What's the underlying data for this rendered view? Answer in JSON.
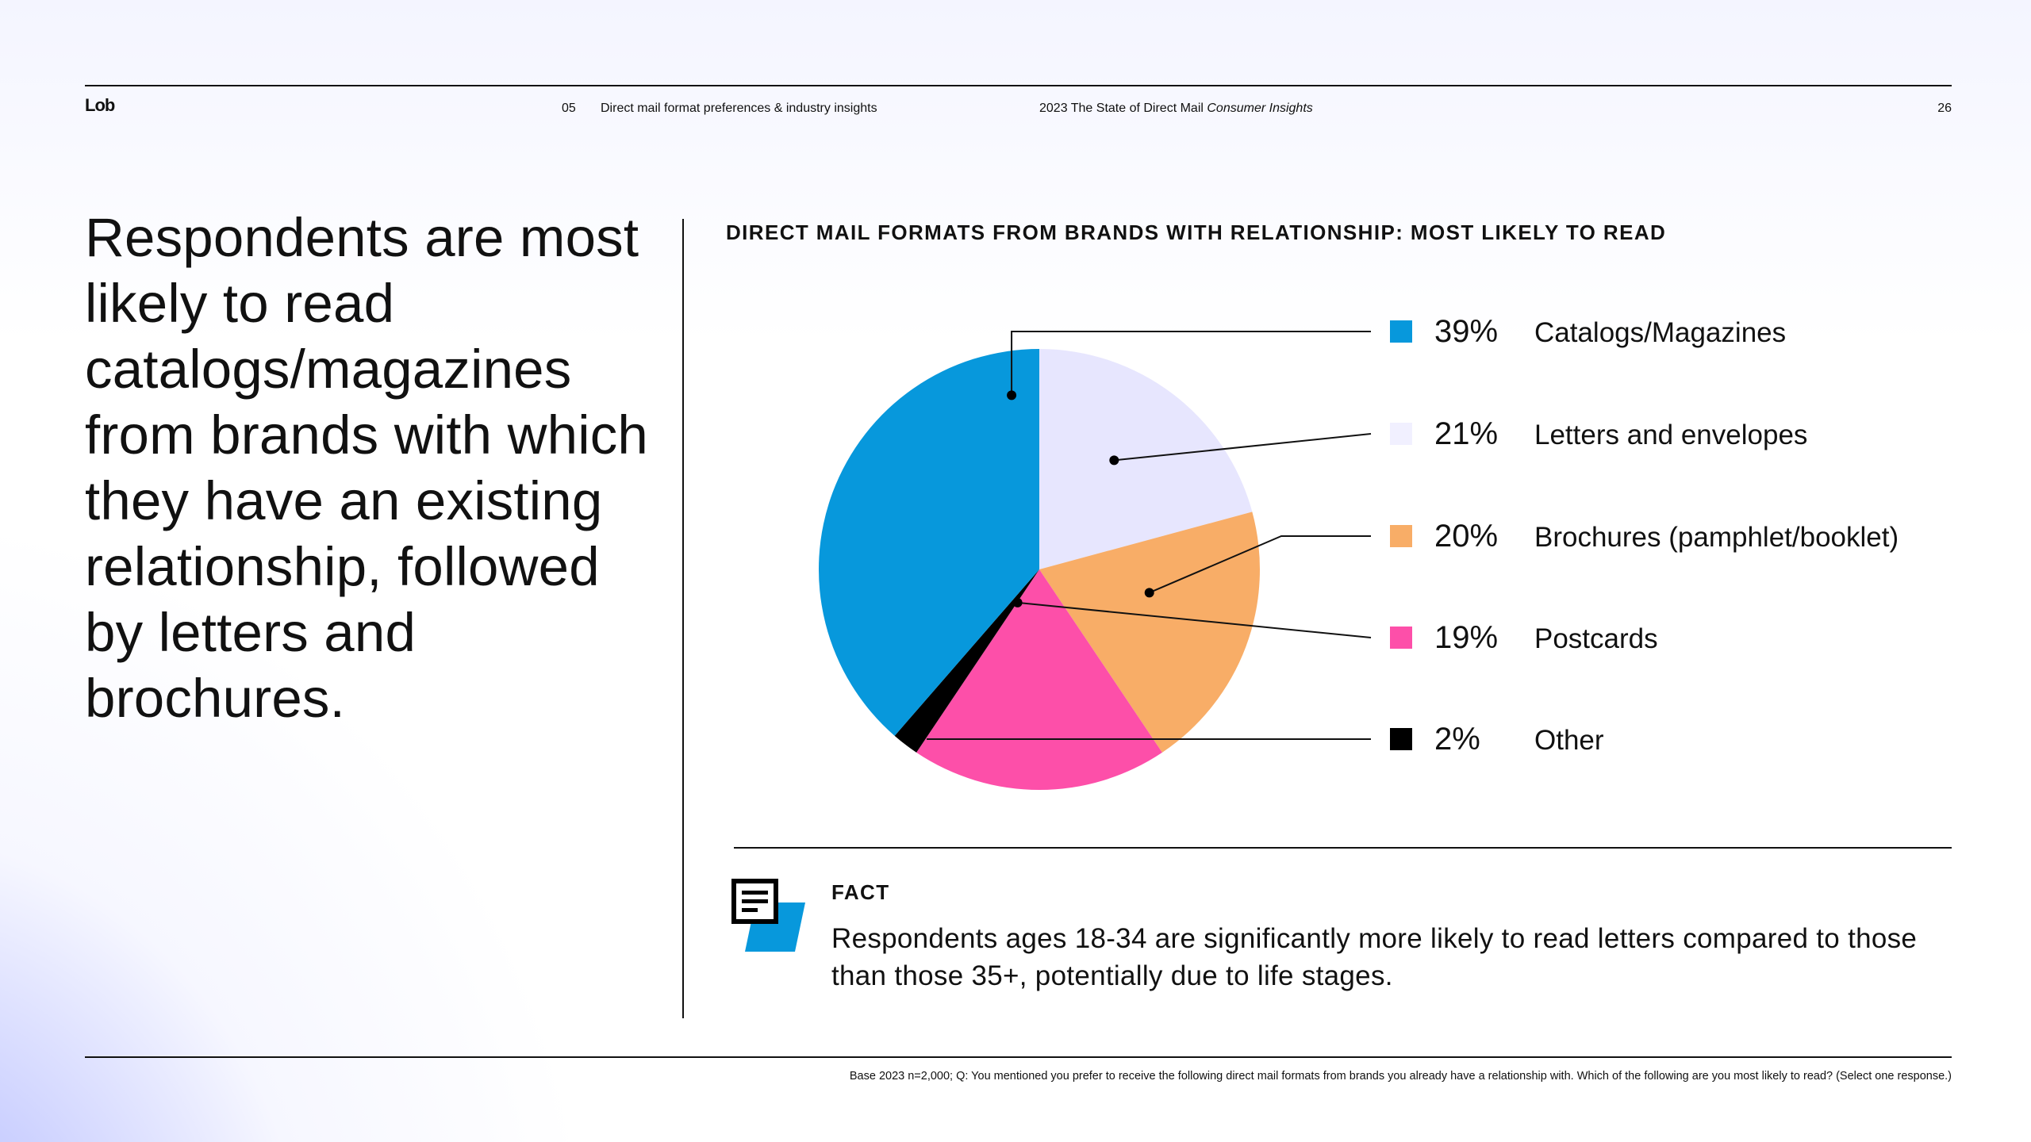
{
  "header": {
    "logo": "Lob",
    "section_number": "05",
    "section_name": "Direct mail format preferences & industry insights",
    "report_title": "2023 The State of Direct Mail",
    "report_subtitle": "Consumer Insights",
    "page_number": "26"
  },
  "headline": "Respondents are most likely to read catalogs/magazines from brands with which they have an existing relationship, followed by letters and brochures.",
  "colors": {
    "catalogs": "#0798dc",
    "letters": "#e7e6fe",
    "brochures": "#f8ad67",
    "postcards": "#fd4fa9",
    "other": "#000000"
  },
  "chart_data": {
    "type": "pie",
    "title": "DIRECT MAIL FORMATS FROM BRANDS WITH RELATIONSHIP: MOST LIKELY TO READ",
    "unit": "%",
    "slices": [
      {
        "label": "Catalogs/Magazines",
        "value": 39,
        "display": "39%",
        "color": "#0798dc"
      },
      {
        "label": "Letters and envelopes",
        "value": 21,
        "display": "21%",
        "color": "#e7e6fe"
      },
      {
        "label": "Brochures (pamphlet/booklet)",
        "value": 20,
        "display": "20%",
        "color": "#f8ad67"
      },
      {
        "label": "Postcards",
        "value": 19,
        "display": "19%",
        "color": "#fd4fa9"
      },
      {
        "label": "Other",
        "value": 2,
        "display": "2%",
        "color": "#000000"
      }
    ],
    "legend_position": "right"
  },
  "fact": {
    "title": "FACT",
    "text": "Respondents ages 18-34 are significantly more likely to read letters compared to those than those 35+, potentially due to life stages."
  },
  "footnote": "Base 2023 n=2,000; Q: You mentioned you prefer to receive the following direct mail formats from brands you already have a relationship with. Which of the following are you most likely to read?  (Select one response.)"
}
